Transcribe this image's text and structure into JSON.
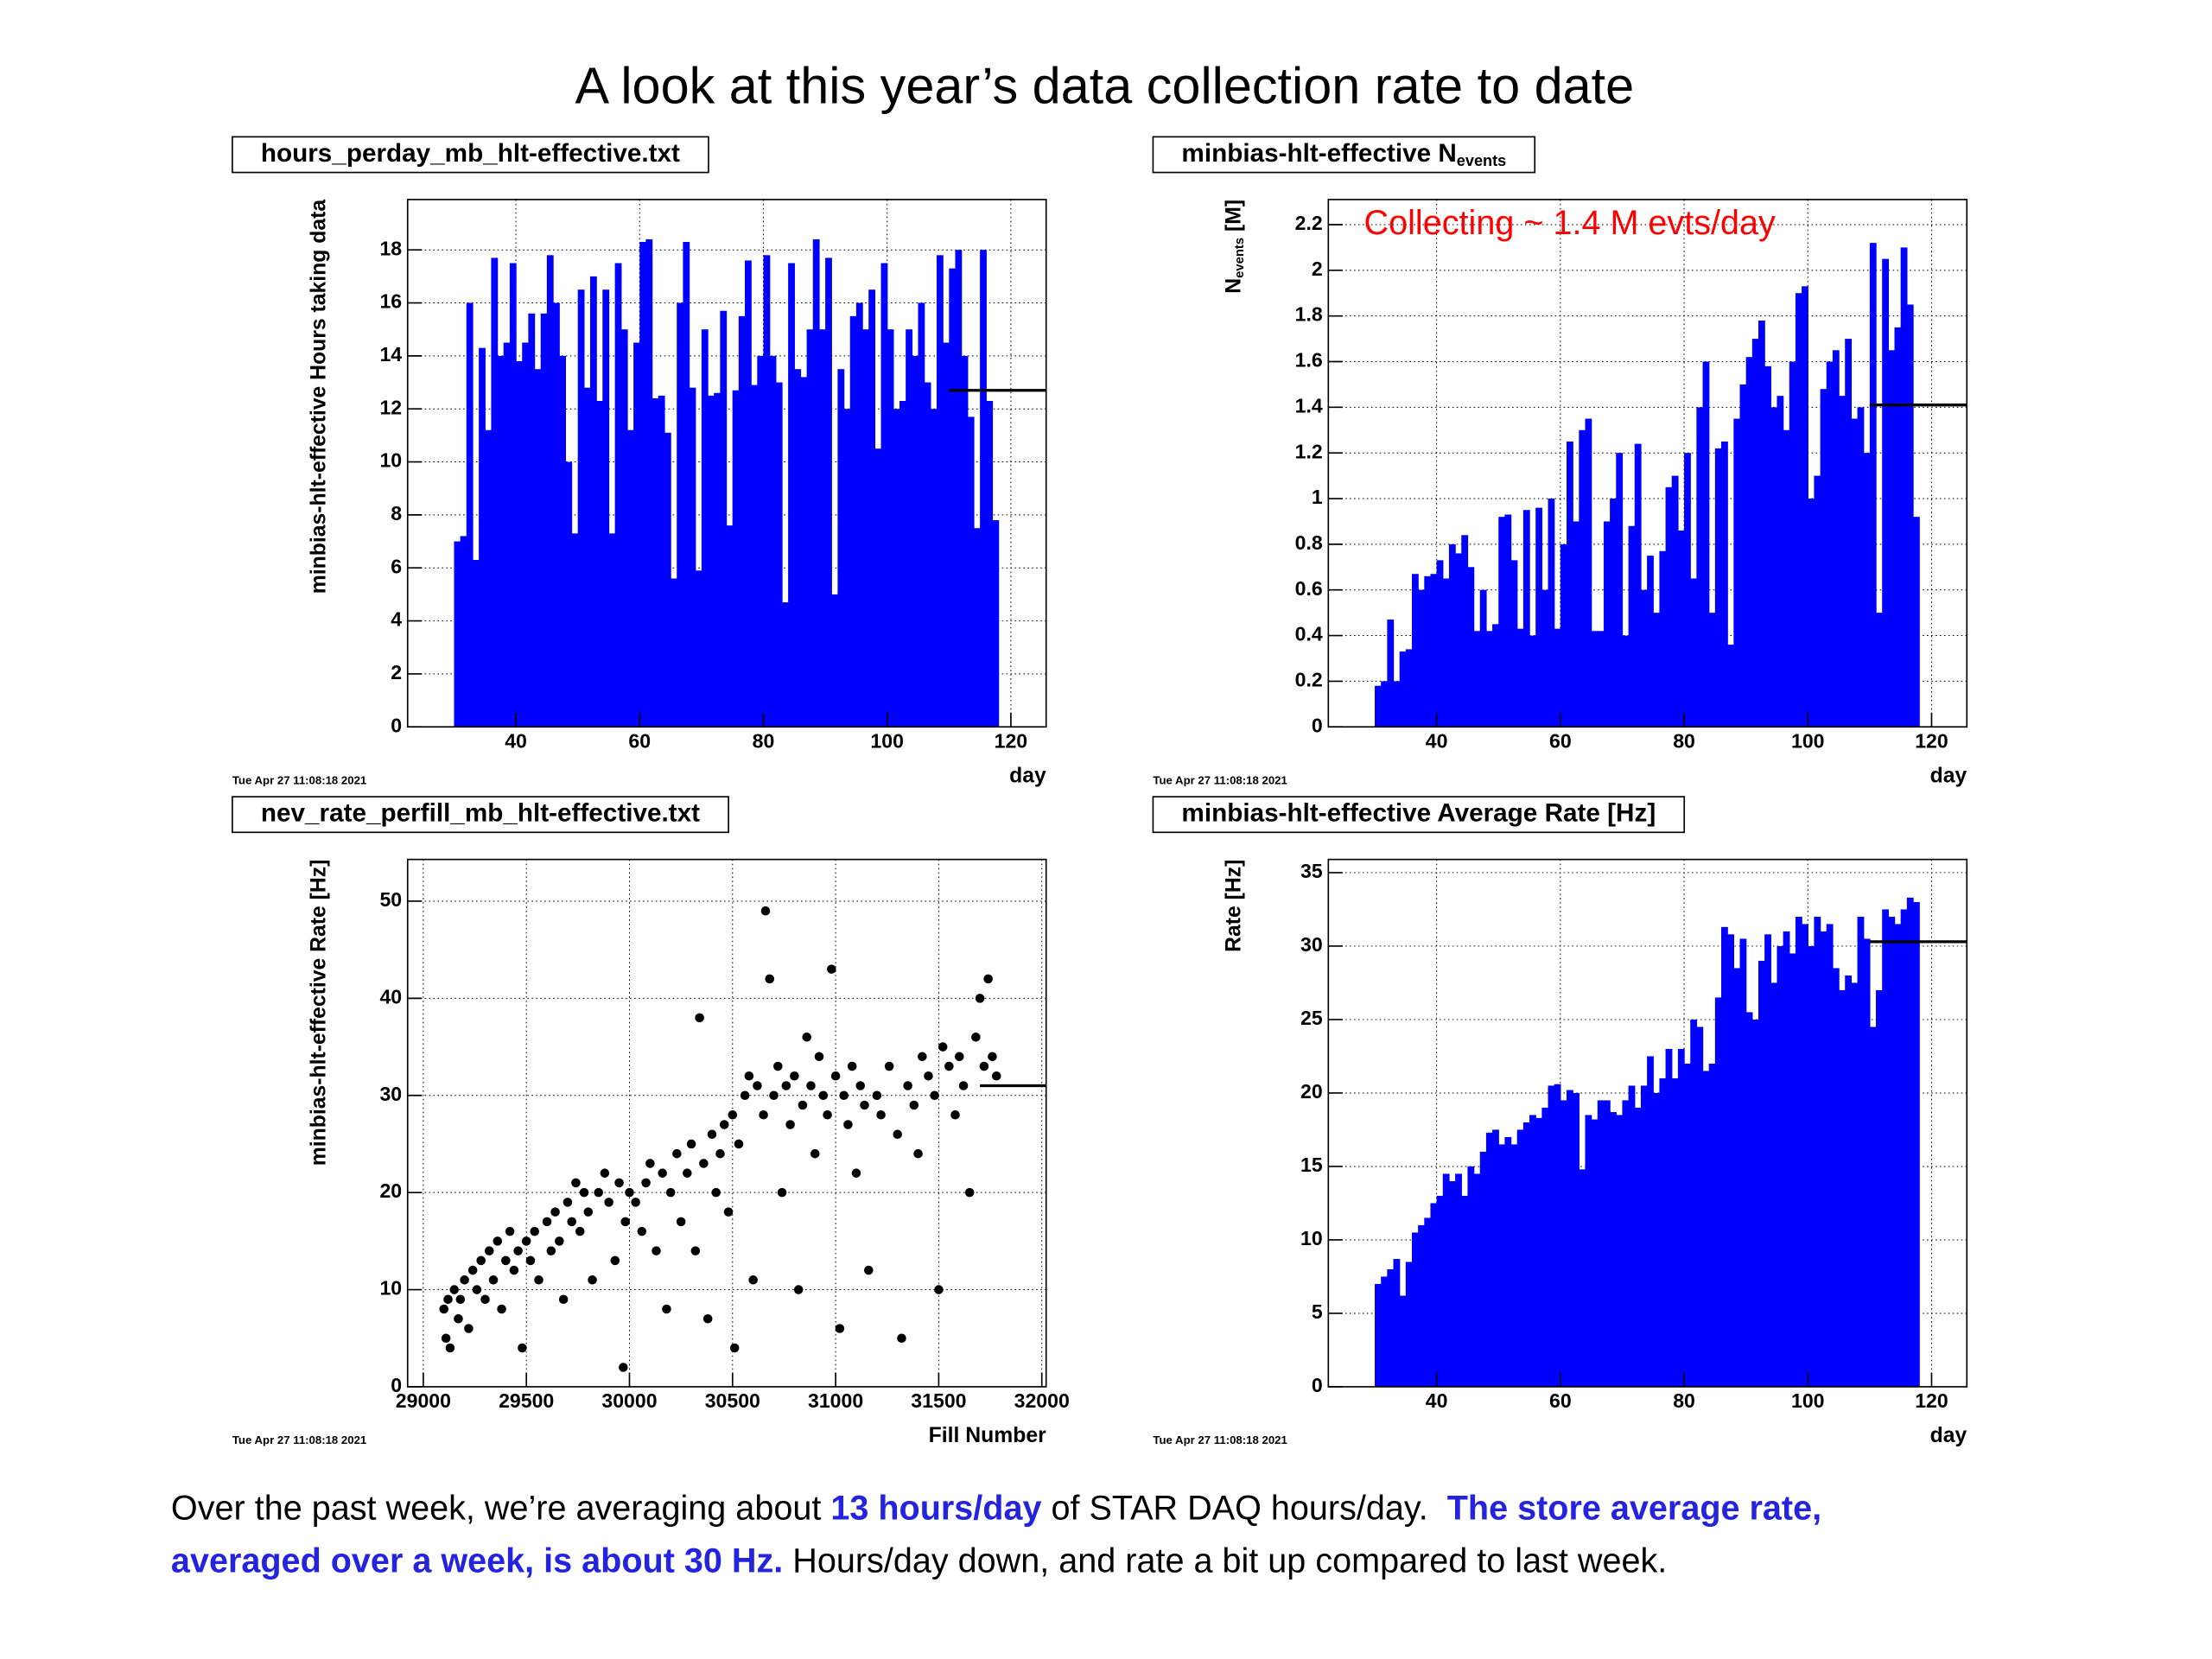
{
  "title": "A look at this year’s data collection rate to date",
  "caption": [
    [
      {
        "text": "Over the past week, we’re averaging about ",
        "emphasis": false
      },
      {
        "text": "13 hours/day",
        "emphasis": true
      },
      {
        "text": " of STAR DAQ hours/day.  ",
        "emphasis": false
      },
      {
        "text": "The store average rate,",
        "emphasis": true
      }
    ],
    [
      {
        "text": "averaged over a week, is about 30 Hz.",
        "emphasis": true
      },
      {
        "text": " Hours/day down, and rate a bit up compared to last week.",
        "emphasis": false
      }
    ]
  ],
  "emphasis_color": "#2424e0",
  "chart_data": [
    {
      "type": "histogram",
      "title": "hours_perday_mb_hlt-effective.txt",
      "ylabel": "minbias-hlt-effective Hours taking data",
      "xlabel": "day",
      "timestamp": "Tue Apr 27 11:08:18 2021",
      "color": "#0000ff",
      "grid": true,
      "xlim": [
        22.5,
        125.7
      ],
      "xticks": [
        40,
        60,
        80,
        100,
        120
      ],
      "ylim": [
        0,
        19.9
      ],
      "yticks": [
        0,
        2,
        4,
        6,
        8,
        10,
        12,
        14,
        16,
        18
      ],
      "mean_line": {
        "value": 12.7,
        "from": 110
      },
      "bins": [
        30,
        31,
        32,
        33,
        34,
        35,
        36,
        37,
        38,
        39,
        40,
        41,
        42,
        43,
        44,
        45,
        46,
        47,
        48,
        49,
        50,
        51,
        52,
        53,
        54,
        55,
        56,
        57,
        58,
        59,
        60,
        61,
        62,
        63,
        64,
        65,
        66,
        67,
        68,
        69,
        70,
        71,
        72,
        73,
        74,
        75,
        76,
        77,
        78,
        79,
        80,
        81,
        82,
        83,
        84,
        85,
        86,
        87,
        88,
        89,
        90,
        91,
        92,
        93,
        94,
        95,
        96,
        97,
        98,
        99,
        100,
        101,
        102,
        103,
        104,
        105,
        106,
        107,
        108,
        109,
        110,
        111,
        112,
        113,
        114,
        115,
        116,
        117,
        118
      ],
      "values": [
        7,
        7.2,
        16,
        6.3,
        14.3,
        11.2,
        17.7,
        14,
        14.5,
        17.5,
        13.8,
        14.5,
        15.6,
        13.5,
        15.6,
        17.8,
        16,
        14,
        10,
        7.3,
        16.5,
        12.8,
        17,
        12.3,
        16.5,
        7.3,
        17.5,
        15,
        11.2,
        14.5,
        18.3,
        18.4,
        12.4,
        12.5,
        11.1,
        5.6,
        16,
        18.3,
        12.8,
        5.9,
        15,
        12.5,
        12.6,
        15.7,
        7.6,
        12.7,
        15.5,
        17.6,
        12.9,
        14,
        17.8,
        14,
        13,
        4.7,
        17.5,
        13.5,
        13.2,
        15,
        18.4,
        15,
        17.7,
        5,
        13.5,
        12,
        15.5,
        16,
        15,
        16.5,
        10.5,
        17.5,
        15,
        12,
        12.3,
        15,
        14,
        16,
        13,
        12,
        17.8,
        14.5,
        17.3,
        18,
        14,
        11.7,
        7.5,
        18,
        12.3,
        7.8
      ]
    },
    {
      "type": "histogram",
      "title": "minbias-hlt-effective N",
      "title_subscript": "events",
      "ylabel": "N",
      "ylabel_subscript": "events",
      "ylabel_suffix": " [M]",
      "xlabel": "day",
      "timestamp": "Tue Apr 27 11:08:18 2021",
      "color": "#0000ff",
      "grid": true,
      "annotation": "Collecting ~ 1.4 M evts/day",
      "annotation_color": "#ff0000",
      "xlim": [
        22.5,
        125.7
      ],
      "xticks": [
        40,
        60,
        80,
        100,
        120
      ],
      "ylim": [
        0,
        2.31
      ],
      "yticks": [
        0,
        0.2,
        0.4,
        0.6,
        0.8,
        1,
        1.2,
        1.4,
        1.6,
        1.8,
        2,
        2.2
      ],
      "mean_line": {
        "value": 1.41,
        "from": 110
      },
      "bins": [
        30,
        31,
        32,
        33,
        34,
        35,
        36,
        37,
        38,
        39,
        40,
        41,
        42,
        43,
        44,
        45,
        46,
        47,
        48,
        49,
        50,
        51,
        52,
        53,
        54,
        55,
        56,
        57,
        58,
        59,
        60,
        61,
        62,
        63,
        64,
        65,
        66,
        67,
        68,
        69,
        70,
        71,
        72,
        73,
        74,
        75,
        76,
        77,
        78,
        79,
        80,
        81,
        82,
        83,
        84,
        85,
        86,
        87,
        88,
        89,
        90,
        91,
        92,
        93,
        94,
        95,
        96,
        97,
        98,
        99,
        100,
        101,
        102,
        103,
        104,
        105,
        106,
        107,
        108,
        109,
        110,
        111,
        112,
        113,
        114,
        115,
        116,
        117,
        118
      ],
      "values": [
        0.18,
        0.2,
        0.47,
        0.2,
        0.33,
        0.34,
        0.67,
        0.6,
        0.66,
        0.67,
        0.73,
        0.65,
        0.8,
        0.76,
        0.84,
        0.7,
        0.42,
        0.6,
        0.42,
        0.45,
        0.92,
        0.93,
        0.73,
        0.43,
        0.95,
        0.4,
        0.96,
        0.6,
        1,
        0.43,
        0.8,
        1.25,
        0.9,
        1.3,
        1.35,
        0.42,
        0.42,
        0.9,
        1,
        1.2,
        0.4,
        0.88,
        1.24,
        0.6,
        0.75,
        0.5,
        0.77,
        1.05,
        1.1,
        0.86,
        1.2,
        0.65,
        1.4,
        1.6,
        0.5,
        1.22,
        1.25,
        0.36,
        1.35,
        1.5,
        1.62,
        1.7,
        1.78,
        1.58,
        1.4,
        1.45,
        1.3,
        1.6,
        1.9,
        1.93,
        1,
        1.1,
        1.48,
        1.6,
        1.65,
        1.45,
        1.7,
        1.35,
        1.4,
        1.2,
        2.12,
        0.5,
        2.05,
        1.65,
        1.75,
        2.1,
        1.85,
        0.92
      ]
    },
    {
      "type": "scatter",
      "title": "nev_rate_perfill_mb_hlt-effective.txt",
      "ylabel": "minbias-hlt-effective Rate [Hz]",
      "xlabel": "Fill Number",
      "timestamp": "Tue Apr 27 11:08:18 2021",
      "color": "#000000",
      "grid": true,
      "xlim": [
        28924,
        32021
      ],
      "xticks": [
        29000,
        29500,
        30000,
        30500,
        31000,
        31500,
        32000
      ],
      "ylim": [
        0,
        54.3
      ],
      "yticks": [
        0,
        10,
        20,
        30,
        40,
        50
      ],
      "mean_line": {
        "value": 31,
        "from": 31700
      },
      "x": [
        29100,
        29110,
        29120,
        29130,
        29150,
        29170,
        29180,
        29200,
        29220,
        29240,
        29260,
        29280,
        29300,
        29320,
        29340,
        29360,
        29380,
        29400,
        29420,
        29440,
        29460,
        29480,
        29500,
        29520,
        29540,
        29560,
        29600,
        29620,
        29640,
        29660,
        29680,
        29700,
        29720,
        29740,
        29760,
        29780,
        29800,
        29820,
        29850,
        29880,
        29900,
        29930,
        29950,
        29970,
        29980,
        30000,
        30030,
        30060,
        30080,
        30100,
        30130,
        30160,
        30180,
        30200,
        30230,
        30250,
        30280,
        30300,
        30320,
        30340,
        30360,
        30380,
        30400,
        30420,
        30440,
        30460,
        30480,
        30500,
        30510,
        30530,
        30560,
        30580,
        30600,
        30620,
        30650,
        30660,
        30680,
        30700,
        30720,
        30740,
        30760,
        30780,
        30800,
        30820,
        30840,
        30860,
        30880,
        30900,
        30920,
        30940,
        30960,
        30980,
        31000,
        31020,
        31040,
        31060,
        31080,
        31100,
        31120,
        31140,
        31160,
        31200,
        31220,
        31260,
        31300,
        31320,
        31350,
        31380,
        31400,
        31420,
        31450,
        31480,
        31500,
        31520,
        31550,
        31580,
        31600,
        31620,
        31650,
        31680,
        31700,
        31720,
        31740,
        31760,
        31780
      ],
      "values": [
        8,
        5,
        9,
        4,
        10,
        7,
        9,
        11,
        6,
        12,
        10,
        13,
        9,
        14,
        11,
        15,
        8,
        13,
        16,
        12,
        14,
        4,
        15,
        13,
        16,
        11,
        17,
        14,
        18,
        15,
        9,
        19,
        17,
        21,
        16,
        20,
        18,
        11,
        20,
        22,
        19,
        13,
        21,
        2,
        17,
        20,
        19,
        16,
        21,
        23,
        14,
        22,
        8,
        20,
        24,
        17,
        22,
        25,
        14,
        38,
        23,
        7,
        26,
        20,
        24,
        27,
        18,
        28,
        4,
        25,
        30,
        32,
        11,
        31,
        28,
        49,
        42,
        30,
        33,
        20,
        31,
        27,
        32,
        10,
        29,
        36,
        31,
        24,
        34,
        30,
        28,
        43,
        32,
        6,
        30,
        27,
        33,
        22,
        31,
        29,
        12,
        30,
        28,
        33,
        26,
        5,
        31,
        29,
        24,
        34,
        32,
        30,
        10,
        35,
        33,
        28,
        34,
        31,
        20,
        36,
        40,
        33,
        42,
        34,
        32
      ]
    },
    {
      "type": "histogram",
      "title": "minbias-hlt-effective Average Rate [Hz]",
      "ylabel": "Rate [Hz]",
      "xlabel": "day",
      "timestamp": "Tue Apr 27 11:08:18 2021",
      "color": "#0000ff",
      "grid": true,
      "xlim": [
        22.5,
        125.7
      ],
      "xticks": [
        40,
        60,
        80,
        100,
        120
      ],
      "ylim": [
        0,
        35.9
      ],
      "yticks": [
        0,
        5,
        10,
        15,
        20,
        25,
        30,
        35
      ],
      "mean_line": {
        "value": 30.3,
        "from": 110
      },
      "bins": [
        30,
        31,
        32,
        33,
        34,
        35,
        36,
        37,
        38,
        39,
        40,
        41,
        42,
        43,
        44,
        45,
        46,
        47,
        48,
        49,
        50,
        51,
        52,
        53,
        54,
        55,
        56,
        57,
        58,
        59,
        60,
        61,
        62,
        63,
        64,
        65,
        66,
        67,
        68,
        69,
        70,
        71,
        72,
        73,
        74,
        75,
        76,
        77,
        78,
        79,
        80,
        81,
        82,
        83,
        84,
        85,
        86,
        87,
        88,
        89,
        90,
        91,
        92,
        93,
        94,
        95,
        96,
        97,
        98,
        99,
        100,
        101,
        102,
        103,
        104,
        105,
        106,
        107,
        108,
        109,
        110,
        111,
        112,
        113,
        114,
        115,
        116,
        117,
        118
      ],
      "values": [
        7,
        7.5,
        8,
        8.7,
        6.2,
        8.5,
        10.5,
        11,
        11.5,
        12.5,
        13,
        14.5,
        14,
        14.5,
        13,
        15,
        14.5,
        16,
        17.3,
        17.5,
        16.5,
        17,
        16.5,
        17.5,
        18,
        18.5,
        18.3,
        19,
        20.5,
        20.6,
        19.5,
        20.2,
        20,
        14.8,
        18.5,
        18.2,
        19.5,
        19.5,
        18.7,
        18.5,
        19.5,
        20.5,
        19,
        20.5,
        22.5,
        20,
        21,
        23,
        21,
        23,
        22,
        25,
        24.5,
        21.5,
        22,
        26.5,
        31.3,
        30.8,
        28.5,
        30.5,
        25.5,
        25,
        29,
        30.8,
        27.5,
        30,
        31,
        29.5,
        32,
        31.5,
        30,
        32,
        31,
        31.5,
        28.5,
        27,
        28,
        27.5,
        32,
        30.5,
        24.5,
        27,
        32.5,
        32,
        31.5,
        32.5,
        33.3,
        33
      ]
    }
  ]
}
